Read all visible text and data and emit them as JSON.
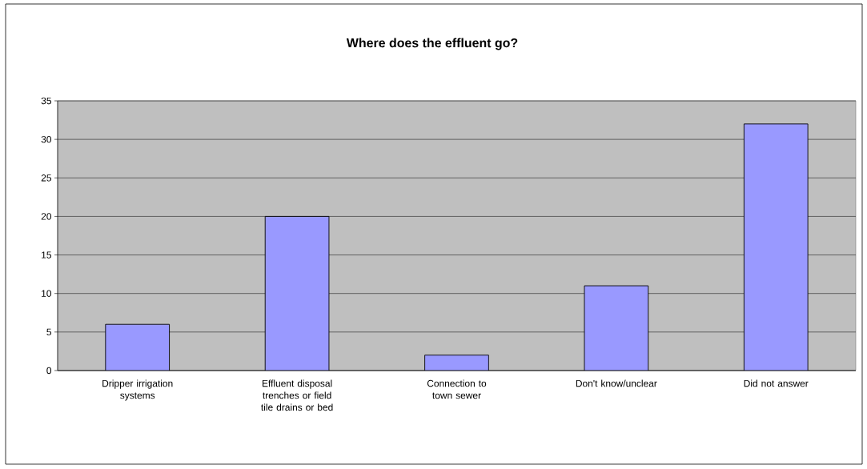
{
  "chart_data": {
    "type": "bar",
    "title": "Where does the effluent go?",
    "categories": [
      "Dripper irrigation systems",
      "Effluent disposal trenches or field tile drains or bed",
      "Connection to town sewer",
      "Don't know/unclear",
      "Did not answer"
    ],
    "values": [
      6,
      20,
      2,
      11,
      32
    ],
    "color": "#9999ff",
    "ylim": [
      0,
      35
    ],
    "yticks": [
      0,
      5,
      10,
      15,
      20,
      25,
      30,
      35
    ],
    "grid": "y"
  }
}
